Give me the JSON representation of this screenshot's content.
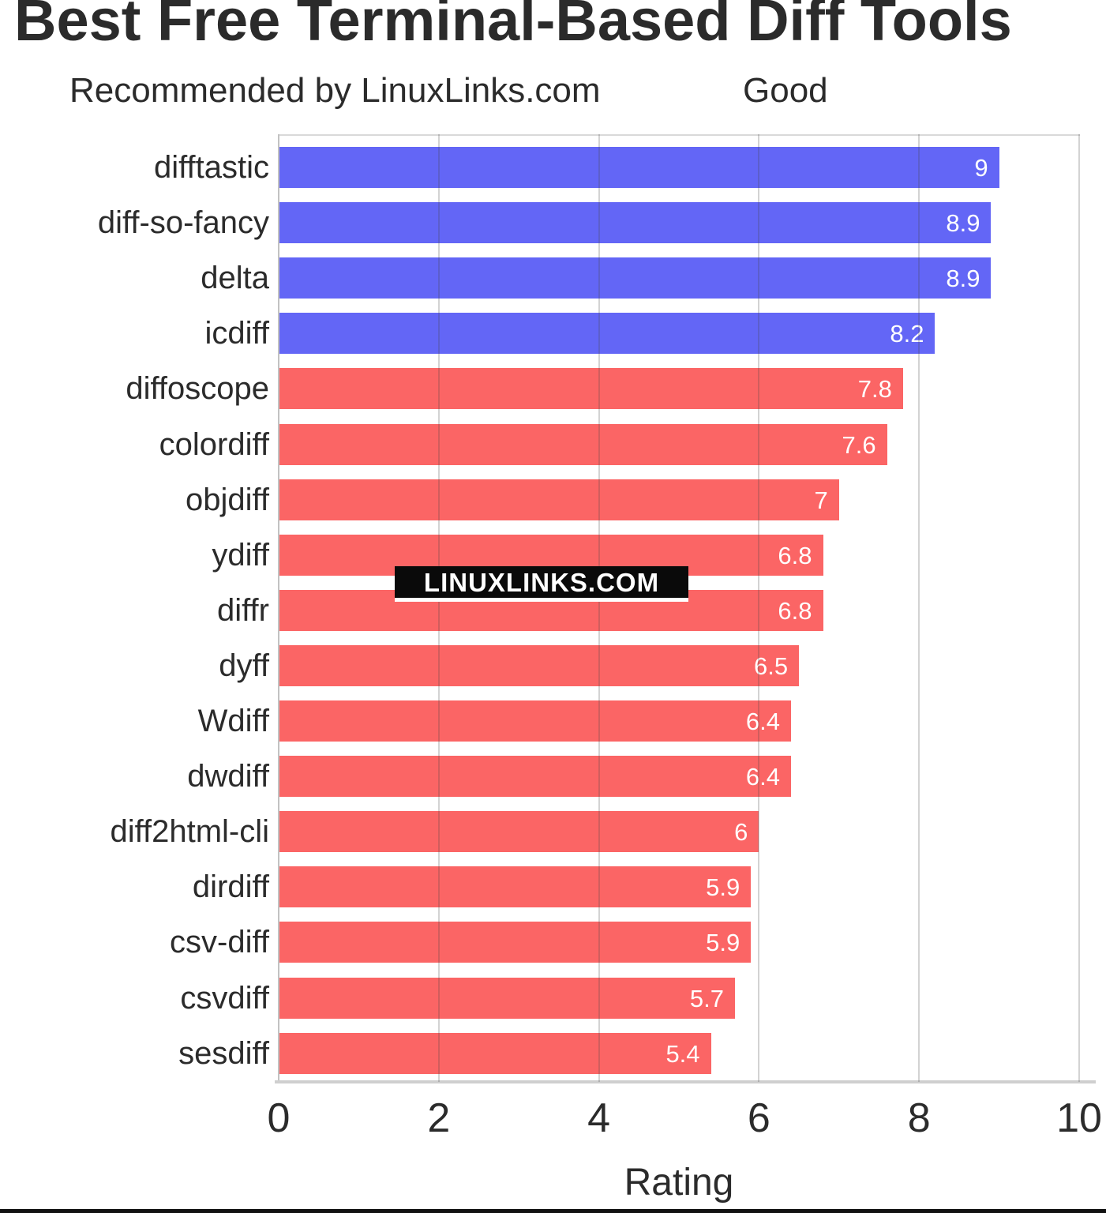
{
  "chart_data": {
    "type": "bar",
    "orientation": "horizontal",
    "title": "Best Free Terminal-Based Diff Tools",
    "xlabel": "Rating",
    "xlim": [
      0,
      10
    ],
    "xticks": [
      0,
      2,
      4,
      6,
      8,
      10
    ],
    "grid": true,
    "legend_position": "top",
    "categories": [
      "difftastic",
      "diff-so-fancy",
      "delta",
      "icdiff",
      "diffoscope",
      "colordiff",
      "objdiff",
      "ydiff",
      "diffr",
      "dyff",
      "Wdiff",
      "dwdiff",
      "diff2html-cli",
      "dirdiff",
      "csv-diff",
      "csvdiff",
      "sesdiff"
    ],
    "values": [
      9,
      8.9,
      8.9,
      8.2,
      7.8,
      7.6,
      7,
      6.8,
      6.8,
      6.5,
      6.4,
      6.4,
      6,
      5.9,
      5.9,
      5.7,
      5.4
    ],
    "value_labels": [
      "9",
      "8.9",
      "8.9",
      "8.2",
      "7.8",
      "7.6",
      "7",
      "6.8",
      "6.8",
      "6.5",
      "6.4",
      "6.4",
      "6",
      "5.9",
      "5.9",
      "5.7",
      "5.4"
    ],
    "groups": [
      "recommended",
      "recommended",
      "recommended",
      "recommended",
      "good",
      "good",
      "good",
      "good",
      "good",
      "good",
      "good",
      "good",
      "good",
      "good",
      "good",
      "good",
      "good"
    ],
    "series": [
      {
        "name": "Recommended by LinuxLinks.com",
        "group": "recommended",
        "color": "#6366F6",
        "categories": [
          "difftastic",
          "diff-so-fancy",
          "delta",
          "icdiff"
        ],
        "values": [
          9,
          8.9,
          8.9,
          8.2
        ]
      },
      {
        "name": "Good",
        "group": "good",
        "color": "#FB6565",
        "categories": [
          "diffoscope",
          "colordiff",
          "objdiff",
          "ydiff",
          "diffr",
          "dyff",
          "Wdiff",
          "dwdiff",
          "diff2html-cli",
          "dirdiff",
          "csv-diff",
          "csvdiff",
          "sesdiff"
        ],
        "values": [
          7.8,
          7.6,
          7,
          6.8,
          6.8,
          6.5,
          6.4,
          6.4,
          6,
          5.9,
          5.9,
          5.7,
          5.4
        ]
      }
    ]
  },
  "watermark": "LINUXLINKS.COM"
}
